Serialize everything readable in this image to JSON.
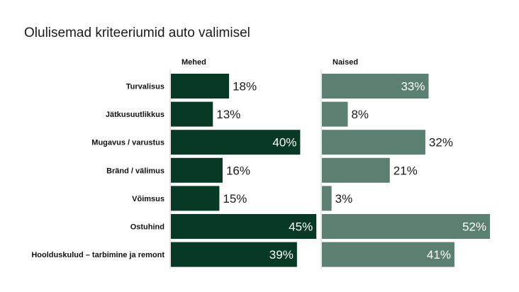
{
  "chart_data": {
    "type": "bar",
    "orientation": "horizontal",
    "title": "Olulisemad kriteeriumid auto valimisel",
    "categories": [
      "Turvalisus",
      "Jätkusuutlikkus",
      "Mugavus / varustus",
      "Bränd / välimus",
      "Võimsus",
      "Ostuhind",
      "Hoolduskulud – tarbimine ja remont"
    ],
    "series": [
      {
        "name": "Mehed",
        "values": [
          18,
          13,
          40,
          16,
          15,
          45,
          39
        ],
        "color": "#073924"
      },
      {
        "name": "Naised",
        "values": [
          33,
          8,
          32,
          21,
          3,
          52,
          41
        ],
        "color": "#5b7f70"
      }
    ],
    "value_suffix": "%",
    "xlim": [
      0,
      52
    ],
    "grid": false
  }
}
